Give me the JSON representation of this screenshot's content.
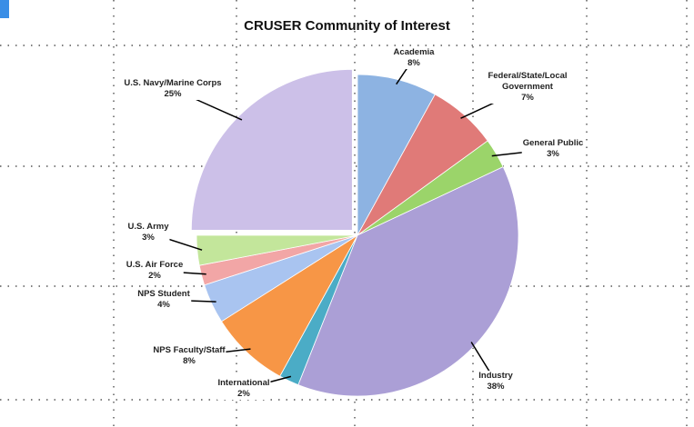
{
  "chart_data": {
    "type": "pie",
    "title": "CRUSER Community of Interest",
    "categories": [
      "Academia",
      "Federal/State/Local Government",
      "General Public",
      "Industry",
      "International",
      "NPS Faculty/Staff",
      "NPS Student",
      "U.S. Air Force",
      "U.S. Army",
      "U.S. Navy/Marine Corps"
    ],
    "values": [
      8,
      7,
      3,
      38,
      2,
      8,
      4,
      2,
      3,
      25
    ],
    "value_labels": [
      "8%",
      "7%",
      "3%",
      "38%",
      "2%",
      "8%",
      "4%",
      "2%",
      "3%",
      "25%"
    ],
    "colors": [
      "#8db3e2",
      "#e07a78",
      "#9bd46a",
      "#ab9fd6",
      "#4bacc6",
      "#f79646",
      "#a9c4f0",
      "#f2a6a6",
      "#c3e69b",
      "#ccc0e8"
    ]
  }
}
